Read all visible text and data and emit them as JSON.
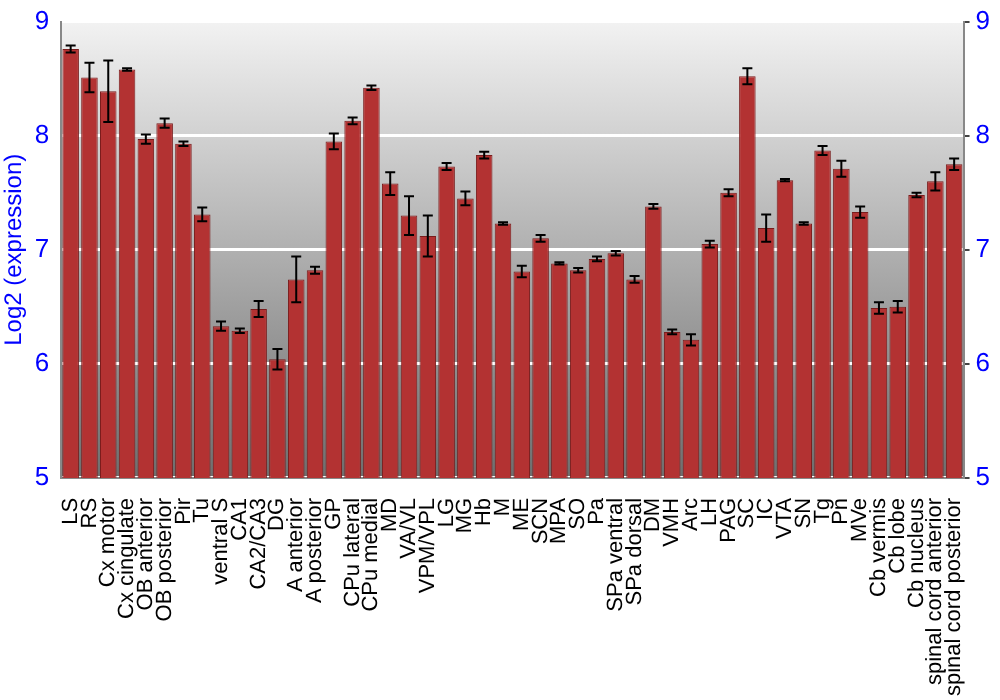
{
  "chart_data": {
    "type": "bar",
    "ylabel": "Log2 (expression)",
    "categories": [
      "LS",
      "RS",
      "Cx motor",
      "Cx cingulate",
      "OB anterior",
      "OB posterior",
      "Pir",
      "Tu",
      "ventral S",
      "CA1",
      "CA2/CA3",
      "DG",
      "A anterior",
      "A posterior",
      "GP",
      "CPu lateral",
      "CPu medial",
      "MD",
      "VA/VL",
      "VPM/VPL",
      "LG",
      "MG",
      "Hb",
      "M",
      "ME",
      "SCN",
      "MPA",
      "SO",
      "Pa",
      "SPa ventral",
      "SPa dorsal",
      "DM",
      "VMH",
      "Arc",
      "LH",
      "PAG",
      "SC",
      "IC",
      "VTA",
      "SN",
      "Tg",
      "Pn",
      "MVe",
      "Cb vermis",
      "Cb lobe",
      "Cb nucleus",
      "spinal cord anterior",
      "spinal cord posterior"
    ],
    "values": [
      8.76,
      8.51,
      8.39,
      8.58,
      7.97,
      8.11,
      7.93,
      7.31,
      6.33,
      6.29,
      6.48,
      6.04,
      6.74,
      6.82,
      7.95,
      8.13,
      8.42,
      7.58,
      7.3,
      7.12,
      7.73,
      7.45,
      7.83,
      7.23,
      6.81,
      7.1,
      6.88,
      6.82,
      6.92,
      6.97,
      6.74,
      7.38,
      6.28,
      6.21,
      7.05,
      7.5,
      8.52,
      7.19,
      7.61,
      7.23,
      7.87,
      7.71,
      7.33,
      6.49,
      6.5,
      7.48,
      7.6,
      7.75
    ],
    "errors": [
      0.03,
      0.13,
      0.27,
      0.01,
      0.04,
      0.04,
      0.02,
      0.06,
      0.04,
      0.02,
      0.07,
      0.09,
      0.2,
      0.03,
      0.07,
      0.03,
      0.02,
      0.1,
      0.17,
      0.18,
      0.03,
      0.06,
      0.03,
      0.01,
      0.05,
      0.03,
      0.01,
      0.02,
      0.02,
      0.02,
      0.03,
      0.02,
      0.02,
      0.05,
      0.03,
      0.03,
      0.07,
      0.12,
      0.01,
      0.01,
      0.04,
      0.07,
      0.05,
      0.05,
      0.05,
      0.02,
      0.08,
      0.05
    ],
    "color": "#b33232",
    "ylim": [
      5,
      9
    ],
    "yticks": [
      5,
      6,
      7,
      8,
      9
    ],
    "y2lim": [
      5,
      9
    ],
    "y2ticks": [
      5,
      6,
      7,
      8,
      9
    ],
    "grid": "y",
    "legend": false
  }
}
